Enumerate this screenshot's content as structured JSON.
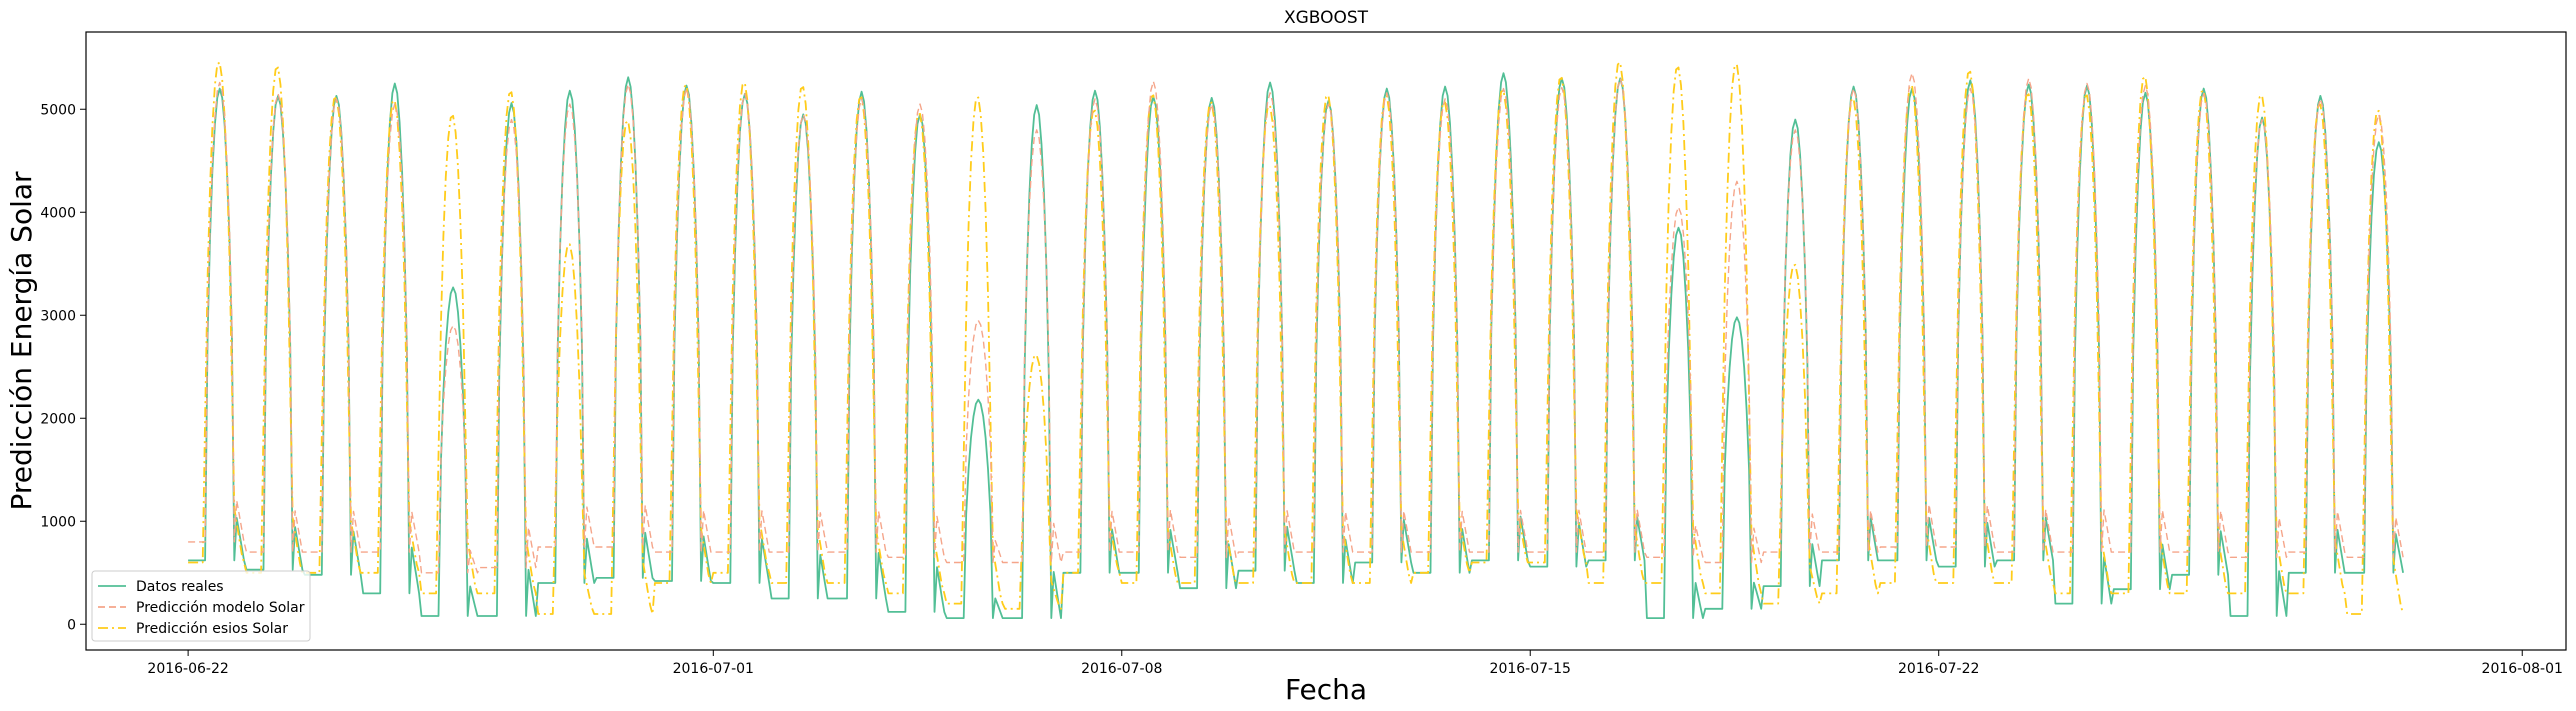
{
  "chart_data": {
    "type": "line",
    "title": "XGBOOST",
    "xlabel": "Fecha",
    "ylabel": "Predicción Energía Solar",
    "x_range": [
      "2016-06-20T06:00",
      "2016-08-01T18:00"
    ],
    "ylim": [
      -250,
      5750
    ],
    "x_ticks": [
      "2016-06-22",
      "2016-07-01",
      "2016-07-08",
      "2016-07-15",
      "2016-07-22",
      "2016-08-01"
    ],
    "y_ticks": [
      0,
      1000,
      2000,
      3000,
      4000,
      5000
    ],
    "grid": false,
    "legend_position": "lower-left",
    "data_start": "2016-06-22T00:00",
    "data_end": "2016-07-29T23:00",
    "series": [
      {
        "name": "Datos reales",
        "color": "#52bf96",
        "dash": "solid",
        "daily_peak": [
          5200,
          5130,
          5130,
          5250,
          3270,
          5060,
          5180,
          5310,
          5230,
          5150,
          4950,
          5170,
          4950,
          2180,
          5040,
          5180,
          5120,
          5110,
          5260,
          5080,
          5200,
          5220,
          5350,
          5300,
          5300,
          3850,
          2980,
          4900,
          5220,
          5200,
          5280,
          5240,
          5230,
          5160,
          5200,
          4920,
          5130,
          4680
        ],
        "daily_night": [
          620,
          530,
          480,
          300,
          80,
          80,
          400,
          450,
          420,
          400,
          250,
          250,
          120,
          60,
          60,
          500,
          500,
          350,
          520,
          400,
          600,
          500,
          620,
          560,
          620,
          60,
          150,
          370,
          620,
          620,
          560,
          620,
          200,
          340,
          480,
          80,
          500,
          500
        ]
      },
      {
        "name": "Predicción modelo Solar",
        "color": "#f5a58a",
        "dash": "dashed",
        "daily_peak": [
          5260,
          5150,
          5100,
          5050,
          2900,
          4900,
          5050,
          5240,
          5200,
          5150,
          4950,
          5100,
          5050,
          2950,
          4800,
          5100,
          5270,
          5050,
          5160,
          5050,
          5160,
          5100,
          5200,
          5210,
          5300,
          4050,
          4300,
          4800,
          5200,
          5350,
          5200,
          5300,
          5250,
          5230,
          5150,
          4900,
          5100,
          4950
        ],
        "daily_night": [
          800,
          700,
          700,
          700,
          500,
          550,
          750,
          750,
          700,
          700,
          700,
          700,
          650,
          600,
          600,
          700,
          700,
          650,
          700,
          700,
          700,
          700,
          700,
          700,
          700,
          650,
          600,
          700,
          700,
          750,
          750,
          700,
          700,
          700,
          700,
          650,
          700,
          650
        ]
      },
      {
        "name": "Predicción esios Solar",
        "color": "#ffcc1a",
        "dash": "dashdot",
        "daily_peak": [
          5470,
          5420,
          5130,
          5100,
          4950,
          5180,
          3700,
          4900,
          5250,
          5270,
          5230,
          5130,
          4970,
          5130,
          2620,
          5000,
          5150,
          5080,
          5050,
          5150,
          5150,
          5080,
          5200,
          5320,
          5470,
          5420,
          5450,
          3500,
          5120,
          5250,
          5380,
          5160,
          5150,
          5330,
          5200,
          5150,
          5060,
          5000
        ],
        "daily_night": [
          600,
          500,
          500,
          500,
          300,
          300,
          100,
          100,
          400,
          500,
          400,
          400,
          300,
          200,
          150,
          500,
          400,
          400,
          400,
          400,
          400,
          500,
          600,
          600,
          400,
          400,
          300,
          200,
          300,
          400,
          400,
          400,
          300,
          300,
          300,
          300,
          300,
          100
        ]
      }
    ]
  }
}
